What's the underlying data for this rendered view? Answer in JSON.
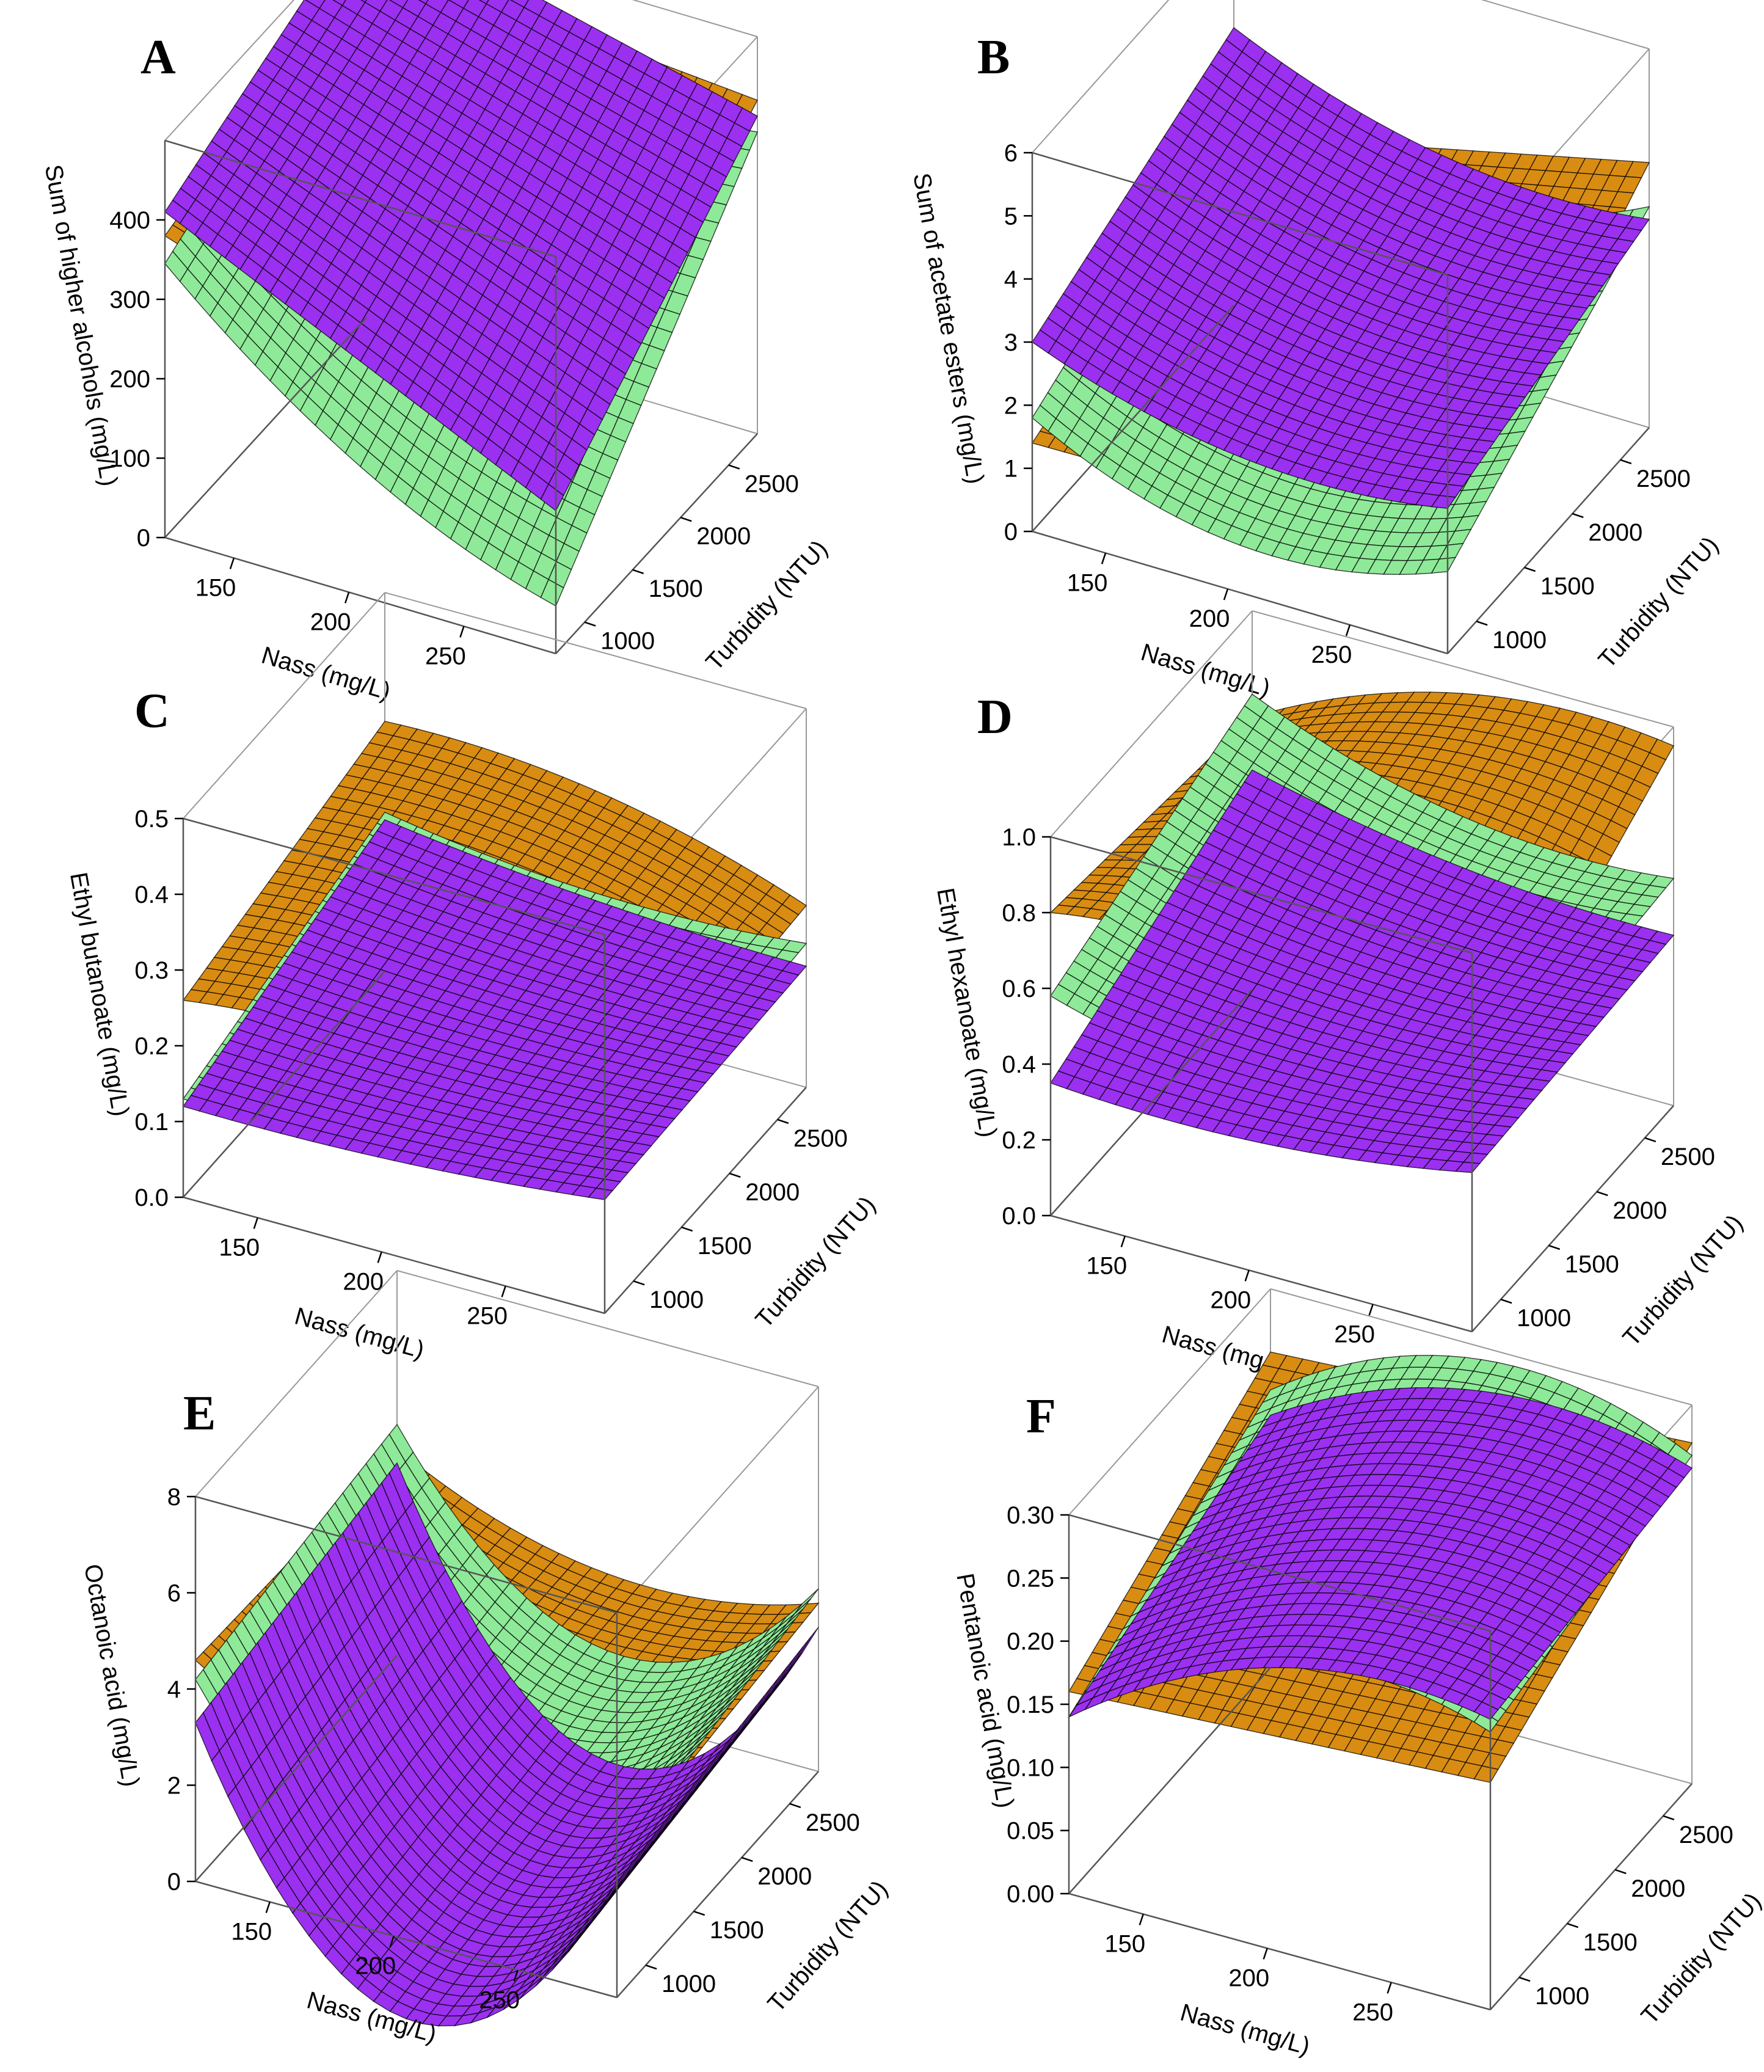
{
  "figure": {
    "colors": {
      "orange": "#D98C12",
      "green": "#8EEA98",
      "purple": "#9B30F0"
    },
    "surface_order_note": "surfaces per panel listed as [orange, green, purple]"
  },
  "chart_data": [
    {
      "panel": "A",
      "type": "surface3d",
      "zlabel": "Sum of higher alcohols (mg/L)",
      "xlabel": "Nass (mg/L)",
      "ylabel": "Turbidity (NTU)",
      "x_ticks": [
        "150",
        "200",
        "250"
      ],
      "y_ticks": [
        "1000",
        "1500",
        "2000",
        "2500"
      ],
      "z_ticks": [
        "0",
        "100",
        "200",
        "300",
        "400"
      ],
      "xlim": [
        120,
        290
      ],
      "ylim": [
        700,
        2800
      ],
      "zlim": [
        0,
        500
      ],
      "surfaces": [
        {
          "color": "orange",
          "corners": {
            "x0y0": 380,
            "x1y0": 210,
            "x0y1": 460,
            "x1y1": 420
          }
        },
        {
          "color": "green",
          "corners": {
            "x0y0": 345,
            "x1y0": 60,
            "x0y1": 470,
            "x1y1": 380
          },
          "curv_x": -40
        },
        {
          "color": "purple",
          "corners": {
            "x0y0": 410,
            "x1y0": 180,
            "x0y1": 520,
            "x1y1": 400
          }
        }
      ]
    },
    {
      "panel": "B",
      "type": "surface3d",
      "zlabel": "Sum of acetate esters (mg/L)",
      "xlabel": "Nass (mg/L)",
      "ylabel": "Turbidity (NTU)",
      "x_ticks": [
        "150",
        "200",
        "250"
      ],
      "y_ticks": [
        "1000",
        "1500",
        "2000",
        "2500"
      ],
      "z_ticks": [
        "0",
        "1",
        "2",
        "3",
        "4",
        "5",
        "6"
      ],
      "xlim": [
        120,
        290
      ],
      "ylim": [
        700,
        2800
      ],
      "zlim": [
        0,
        6
      ],
      "surfaces": [
        {
          "color": "orange",
          "corners": {
            "x0y0": 1.4,
            "x1y0": 1.5,
            "x0y1": 2.7,
            "x1y1": 4.2
          }
        },
        {
          "color": "green",
          "corners": {
            "x0y0": 1.8,
            "x1y0": 1.3,
            "x0y1": 3.4,
            "x1y1": 3.5
          },
          "curv_x": -0.8
        },
        {
          "color": "purple",
          "corners": {
            "x0y0": 3.0,
            "x1y0": 2.3,
            "x0y1": 4.4,
            "x1y1": 3.3
          },
          "curv_x": -0.5
        }
      ]
    },
    {
      "panel": "C",
      "type": "surface3d",
      "zlabel": "Ethyl butanoate (mg/L)",
      "xlabel": "Nass (mg/L)",
      "ylabel": "Turbidity (NTU)",
      "x_ticks": [
        "150",
        "200",
        "250"
      ],
      "y_ticks": [
        "1000",
        "1500",
        "2000",
        "2500"
      ],
      "z_ticks": [
        "0.0",
        "0.1",
        "0.2",
        "0.3",
        "0.4",
        "0.5"
      ],
      "xlim": [
        120,
        290
      ],
      "ylim": [
        700,
        2800
      ],
      "zlim": [
        0,
        0.5
      ],
      "surfaces": [
        {
          "color": "orange",
          "corners": {
            "x0y0": 0.26,
            "x1y0": 0.22,
            "x0y1": 0.33,
            "x1y1": 0.24
          },
          "curv_x": 0.03
        },
        {
          "color": "green",
          "corners": {
            "x0y0": 0.13,
            "x1y0": 0.17,
            "x0y1": 0.21,
            "x1y1": 0.19
          },
          "curv_x": -0.02
        },
        {
          "color": "purple",
          "corners": {
            "x0y0": 0.12,
            "x1y0": 0.15,
            "x0y1": 0.2,
            "x1y1": 0.16
          },
          "curv_x": -0.01
        }
      ]
    },
    {
      "panel": "D",
      "type": "surface3d",
      "zlabel": "Ethyl hexanoate (mg/L)",
      "xlabel": "Nass (mg/L)",
      "ylabel": "Turbidity (NTU)",
      "x_ticks": [
        "150",
        "200",
        "250"
      ],
      "y_ticks": [
        "1000",
        "1500",
        "2000",
        "2500"
      ],
      "z_ticks": [
        "0.0",
        "0.2",
        "0.4",
        "0.6",
        "0.8",
        "1.0"
      ],
      "xlim": [
        120,
        290
      ],
      "ylim": [
        700,
        2800
      ],
      "zlim": [
        0,
        1
      ],
      "surfaces": [
        {
          "color": "orange",
          "corners": {
            "x0y0": 0.8,
            "x1y0": 0.6,
            "x0y1": 0.72,
            "x1y1": 0.95
          },
          "curv_x": 0.1
        },
        {
          "color": "green",
          "corners": {
            "x0y0": 0.58,
            "x1y0": 0.55,
            "x0y1": 0.78,
            "x1y1": 0.6
          },
          "curv_x": -0.08
        },
        {
          "color": "purple",
          "corners": {
            "x0y0": 0.35,
            "x1y0": 0.42,
            "x0y1": 0.58,
            "x1y1": 0.45
          },
          "curv_x": -0.04
        }
      ]
    },
    {
      "panel": "E",
      "type": "surface3d",
      "zlabel": "Octanoic acid (mg/L)",
      "xlabel": "Nass (mg/L)",
      "ylabel": "Turbidity (NTU)",
      "x_ticks": [
        "150",
        "200",
        "250"
      ],
      "y_ticks": [
        "1000",
        "1500",
        "2000",
        "2500"
      ],
      "z_ticks": [
        "0",
        "2",
        "4",
        "6",
        "8"
      ],
      "xlim": [
        120,
        290
      ],
      "ylim": [
        700,
        2800
      ],
      "zlim": [
        0,
        8
      ],
      "surfaces": [
        {
          "color": "orange",
          "corners": {
            "x0y0": 4.6,
            "x1y0": 3.0,
            "x0y1": 4.3,
            "x1y1": 3.5
          },
          "curv_x": -1.0
        },
        {
          "color": "green",
          "corners": {
            "x0y0": 4.2,
            "x1y0": 3.0,
            "x0y1": 4.8,
            "x1y1": 3.8
          },
          "curv_x": -3.0
        },
        {
          "color": "purple",
          "corners": {
            "x0y0": 3.3,
            "x1y0": 2.4,
            "x0y1": 4.0,
            "x1y1": 3.0
          },
          "curv_x": -4.5
        }
      ]
    },
    {
      "panel": "F",
      "type": "surface3d",
      "zlabel": "Pentanoic acid (mg/L)",
      "xlabel": "Nass (mg/L)",
      "ylabel": "Turbidity (NTU)",
      "x_ticks": [
        "150",
        "200",
        "250"
      ],
      "y_ticks": [
        "1000",
        "1500",
        "2000",
        "2500"
      ],
      "z_ticks": [
        "0.00",
        "0.05",
        "0.10",
        "0.15",
        "0.20",
        "0.25",
        "0.30"
      ],
      "xlim": [
        120,
        290
      ],
      "ylim": [
        700,
        2800
      ],
      "zlim": [
        0,
        0.3
      ],
      "surfaces": [
        {
          "color": "orange",
          "corners": {
            "x0y0": 0.16,
            "x1y0": 0.18,
            "x0y1": 0.25,
            "x1y1": 0.27
          }
        },
        {
          "color": "green",
          "corners": {
            "x0y0": 0.14,
            "x1y0": 0.22,
            "x0y1": 0.22,
            "x1y1": 0.26
          },
          "curv_x": 0.05
        },
        {
          "color": "purple",
          "corners": {
            "x0y0": 0.14,
            "x1y0": 0.23,
            "x0y1": 0.2,
            "x1y1": 0.25
          },
          "curv_x": 0.04
        }
      ]
    }
  ]
}
